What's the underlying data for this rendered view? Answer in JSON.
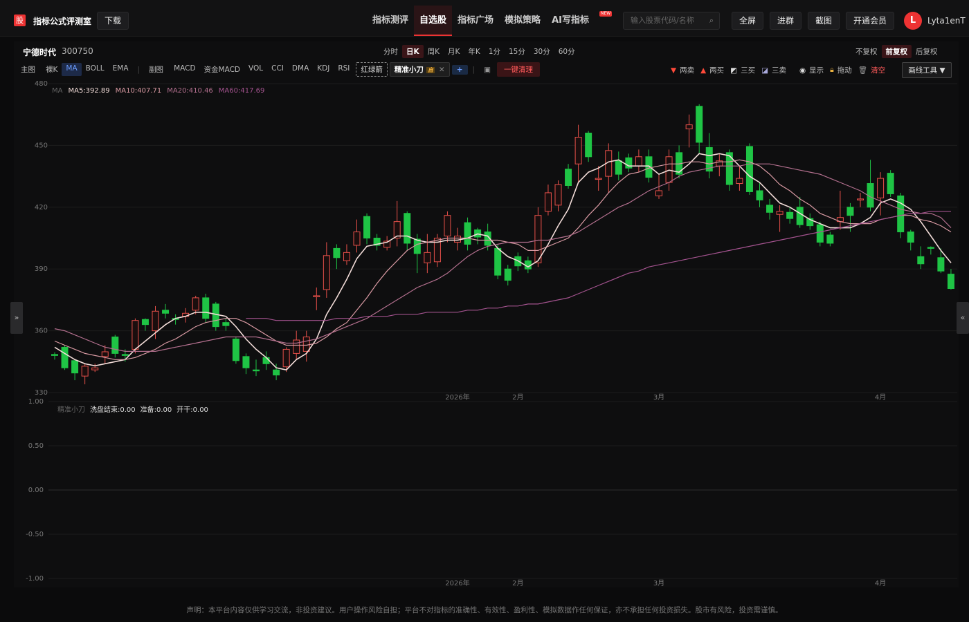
{
  "header": {
    "logo": "股",
    "title": "指标公式评测室",
    "download": "下载",
    "nav": [
      "指标测评",
      "自选股",
      "指标广场",
      "模拟策略",
      "AI写指标"
    ],
    "active_nav": 1,
    "badge": "NEW",
    "search_placeholder": "输入股票代码/名称",
    "buttons": [
      "全屏",
      "进群",
      "截图",
      "开通会员"
    ],
    "avatar": "L",
    "username": "Lyta1enT"
  },
  "stock": {
    "name": "宁德时代",
    "code": "300750",
    "periods": [
      "分时",
      "日K",
      "周K",
      "月K",
      "年K",
      "1分",
      "15分",
      "30分",
      "60分"
    ],
    "active_period": 1,
    "adjust": [
      "不复权",
      "前复权",
      "后复权"
    ],
    "active_adjust": 1
  },
  "toolbar": {
    "main_label": "主图",
    "main": [
      "裸K",
      "MA",
      "BOLL",
      "EMA"
    ],
    "active_main": 1,
    "sub_label": "副图",
    "sub": [
      "MACD",
      "资金MACD",
      "VOL",
      "CCI",
      "DMA",
      "KDJ",
      "RSI"
    ],
    "arrow": "红绿箭",
    "tag": "精准小刀",
    "tag_badge": "自",
    "add": "+",
    "clear": "一键清理",
    "draw": [
      "两卖",
      "两买",
      "三买",
      "三卖",
      "显示",
      "拖动",
      "清空"
    ],
    "draw_tool": "画线工具"
  },
  "chart_data": [
    {
      "type": "candlestick",
      "ylim": [
        330,
        480
      ],
      "yticks": [
        330,
        360,
        390,
        420,
        450,
        480
      ],
      "grid": true,
      "up_color": "#e8504a",
      "down_color": "#1fc445",
      "categories": [
        null,
        null,
        null,
        null,
        null,
        null,
        null,
        null,
        null,
        null,
        null,
        null,
        null,
        null,
        null,
        null,
        null,
        null,
        null,
        null,
        null,
        null,
        null,
        null,
        null,
        null,
        null,
        null,
        null,
        null,
        null,
        null,
        null,
        null,
        null,
        null,
        null,
        null,
        null,
        null,
        "2026年",
        null,
        null,
        null,
        null,
        null,
        "2月",
        null,
        null,
        null,
        null,
        null,
        null,
        null,
        null,
        null,
        null,
        null,
        null,
        null,
        "3月",
        null,
        null,
        null,
        null,
        null,
        null,
        null,
        null,
        null,
        null,
        null,
        null,
        null,
        null,
        null,
        null,
        null,
        null,
        null,
        null,
        null,
        "4月",
        null,
        null,
        null,
        null,
        null,
        null,
        null
      ],
      "open": [
        348.5,
        352,
        345.5,
        338,
        341,
        347.5,
        357,
        348.5,
        351,
        365.5,
        360,
        370,
        366,
        367,
        370,
        376,
        373,
        364,
        356,
        347.5,
        341,
        347,
        341,
        342.5,
        349,
        350,
        376.5,
        380,
        400,
        394,
        401.5,
        415.5,
        405,
        400.5,
        405,
        417,
        404.5,
        393,
        393.5,
        406,
        403,
        412.5,
        409,
        408,
        400,
        390,
        396,
        394,
        393,
        418,
        421,
        438.5,
        441,
        456,
        433.5,
        435,
        442.5,
        444,
        440,
        444.5,
        425.5,
        432,
        446.5,
        458,
        469,
        449,
        440,
        446.5,
        431.5,
        449.5,
        428,
        421,
        416.5,
        417.5,
        420,
        414.5,
        411.5,
        406.5,
        413,
        420,
        423.5,
        431.5,
        424.5,
        436.5,
        425.5,
        408,
        396,
        400.5,
        395.5,
        387.5
      ],
      "high": [
        349.5,
        353,
        346,
        344,
        344,
        353,
        358,
        351,
        366,
        366,
        372,
        373,
        368,
        371,
        377,
        378,
        374,
        366,
        357,
        349,
        346,
        350,
        344,
        352,
        360,
        360,
        381,
        403,
        402,
        402,
        414,
        417,
        407,
        406,
        423,
        418,
        407,
        407,
        407,
        418,
        410,
        415,
        410,
        412,
        402,
        392,
        398,
        396,
        420,
        431,
        433,
        441,
        460,
        457,
        440,
        451,
        447,
        446,
        448,
        448,
        436,
        448,
        450,
        465,
        470,
        456,
        446,
        448,
        440,
        451,
        432,
        424,
        421,
        420,
        425,
        417,
        413,
        408,
        428,
        422,
        427,
        443,
        437,
        438,
        427,
        409,
        401,
        401,
        400,
        390
      ],
      "low": [
        346,
        341,
        336,
        334,
        340,
        344,
        347,
        345,
        349,
        360,
        356,
        366,
        363,
        364,
        368,
        364,
        360,
        360,
        344,
        339,
        338,
        341,
        336,
        340,
        346,
        345,
        370,
        376,
        390,
        392,
        398,
        402,
        399,
        399,
        401,
        399,
        388,
        388,
        391,
        403,
        399,
        399,
        402,
        399,
        385,
        382,
        389,
        388,
        391,
        416,
        418,
        429,
        432,
        442,
        428,
        427,
        433,
        437,
        437,
        432,
        424,
        428,
        434,
        449,
        446,
        434,
        435,
        428,
        428,
        426,
        420,
        414,
        408,
        412,
        410,
        409,
        401,
        401,
        409,
        408,
        420,
        418,
        416,
        425,
        405,
        399,
        390,
        397,
        388,
        380
      ],
      "close": [
        348,
        342,
        339.5,
        342.8,
        342,
        349.8,
        349,
        348,
        365,
        363,
        369.5,
        368.5,
        365.5,
        368.5,
        376,
        366,
        362,
        362.5,
        345.5,
        342,
        340.5,
        344,
        338.5,
        351,
        355.5,
        357,
        377,
        396.5,
        395.5,
        398,
        408,
        405,
        401.5,
        403.5,
        413,
        402.5,
        397.5,
        398,
        405,
        416,
        406,
        402,
        405.5,
        401.5,
        387,
        384.5,
        391.5,
        390,
        416,
        427,
        431,
        430.5,
        454,
        444.5,
        434,
        447.5,
        436,
        439,
        444.5,
        434.5,
        428,
        444.5,
        436,
        460,
        451.5,
        437.5,
        442.5,
        431,
        434,
        427.5,
        423.5,
        417.5,
        418,
        414.5,
        411.5,
        411,
        403,
        402.5,
        415,
        416,
        424,
        420,
        434,
        426.5,
        408,
        403,
        392.5,
        400,
        389,
        380.5
      ],
      "legend_title": "MA",
      "series": [
        {
          "label": "MA5:392.89",
          "color": "#f2dcd8",
          "values": [
            352,
            349,
            346,
            344,
            343,
            344,
            345,
            346,
            351,
            355,
            359,
            363,
            366,
            367,
            369,
            369,
            368,
            367,
            362,
            356,
            351,
            347,
            342,
            341,
            346,
            349,
            356,
            368,
            376,
            385,
            395,
            401,
            402,
            403,
            406,
            406,
            404,
            403,
            403,
            404,
            404,
            405,
            407,
            406,
            400,
            396,
            394,
            391,
            394,
            402,
            411,
            419,
            432,
            437,
            439,
            442,
            443,
            440,
            440,
            440,
            436,
            438,
            437,
            441,
            446,
            445,
            446,
            445,
            440,
            435,
            432,
            427,
            422,
            420,
            417,
            414,
            412,
            410,
            410,
            410,
            412,
            415,
            422,
            424,
            422,
            419,
            413,
            406,
            399,
            393
          ]
        },
        {
          "label": "MA10:407.71",
          "color": "#d99aa3",
          "values": [
            355,
            353,
            351,
            349,
            348,
            347,
            346,
            346,
            347,
            349,
            351,
            354,
            356,
            359,
            362,
            364,
            365,
            366,
            366,
            364,
            361,
            358,
            355,
            353,
            353,
            353,
            354,
            357,
            361,
            364,
            370,
            376,
            383,
            389,
            394,
            399,
            402,
            403,
            404,
            405,
            405,
            405,
            404,
            404,
            404,
            403,
            402,
            399,
            399,
            401,
            403,
            405,
            410,
            416,
            421,
            427,
            432,
            436,
            437,
            439,
            440,
            441,
            441,
            442,
            442,
            441,
            442,
            442,
            443,
            442,
            440,
            436,
            431,
            428,
            424,
            421,
            417,
            415,
            413,
            412,
            412,
            412,
            414,
            415,
            416,
            416,
            414,
            413,
            411,
            408
          ]
        },
        {
          "label": "MA20:410.46",
          "color": "#b4708f",
          "values": [
            361,
            360,
            358,
            356,
            354,
            352,
            351,
            350,
            350,
            350,
            350,
            351,
            352,
            353,
            354,
            355,
            356,
            357,
            357,
            357,
            357,
            356,
            355,
            354,
            354,
            355,
            356,
            358,
            360,
            362,
            364,
            366,
            369,
            372,
            375,
            378,
            381,
            383,
            385,
            388,
            392,
            396,
            399,
            401,
            402,
            403,
            403,
            403,
            404,
            404,
            405,
            406,
            408,
            411,
            414,
            417,
            420,
            422,
            425,
            428,
            430,
            432,
            435,
            437,
            438,
            439,
            440,
            440,
            440,
            441,
            441,
            441,
            440,
            439,
            438,
            437,
            436,
            434,
            432,
            430,
            428,
            425,
            423,
            421,
            419,
            418,
            417,
            417,
            415,
            410
          ]
        },
        {
          "label": "MA60:417.69",
          "color": "#a4538f",
          "values": [
            null,
            null,
            null,
            null,
            null,
            null,
            null,
            null,
            null,
            null,
            null,
            null,
            null,
            null,
            null,
            null,
            null,
            null,
            null,
            366,
            366,
            366,
            365,
            365,
            365,
            365,
            365,
            365,
            366,
            366,
            366,
            367,
            367,
            367,
            368,
            368,
            368,
            369,
            369,
            369,
            369,
            370,
            370,
            371,
            371,
            372,
            372,
            373,
            373,
            374,
            375,
            376,
            378,
            380,
            382,
            384,
            386,
            388,
            389,
            391,
            392,
            393,
            394,
            395,
            396,
            397,
            398,
            399,
            400,
            401,
            402,
            403,
            404,
            405,
            406,
            407,
            408,
            409,
            410,
            411,
            412,
            413,
            414,
            415,
            416,
            417,
            417,
            418,
            418,
            418
          ]
        }
      ]
    },
    {
      "type": "indicator",
      "title": "精准小刀",
      "legend": [
        "洗盘结束:0.00",
        "准备:0.00",
        "开干:0.00"
      ],
      "ylim": [
        -1,
        1
      ],
      "grid": true,
      "yticks": [
        {
          "value": -1,
          "label": "-1.00"
        },
        {
          "value": -0.5,
          "label": "-0.50"
        },
        {
          "value": 0,
          "label": "0.00"
        },
        {
          "value": 0.5,
          "label": "0.50"
        },
        {
          "value": 1,
          "label": "1.00"
        }
      ]
    }
  ],
  "footer": "声明：本平台内容仅供学习交流，非投资建议。用户操作风险自担；平台不对指标的准确性、有效性、盈利性、模拟数据作任何保证，亦不承担任何投资损失。股市有风险，投资需谨慎。"
}
